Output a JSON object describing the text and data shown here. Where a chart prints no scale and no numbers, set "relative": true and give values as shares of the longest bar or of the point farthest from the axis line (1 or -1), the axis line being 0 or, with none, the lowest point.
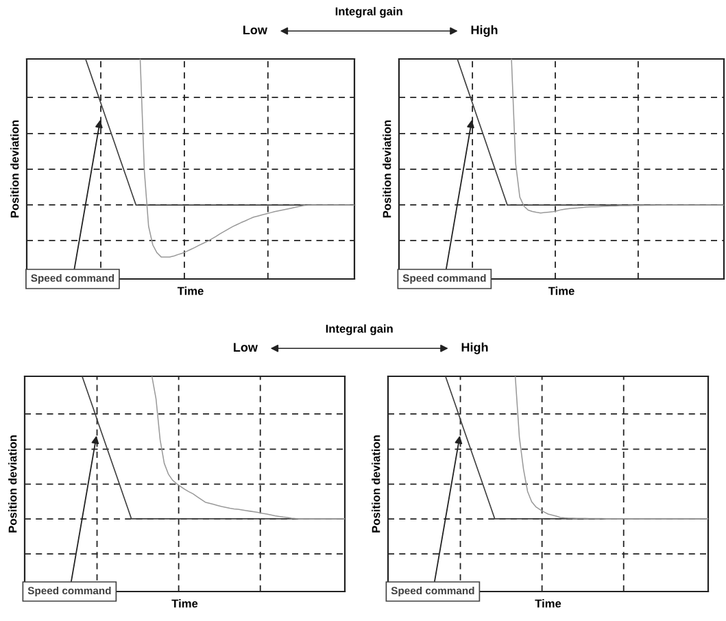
{
  "chart_data": [
    {
      "type": "line",
      "relative": true,
      "xlabel": "Time",
      "ylabel": "Position deviation",
      "annotations": [
        "Integral gain",
        "Low",
        "High"
      ],
      "grid": true,
      "legend": false,
      "marker": "none",
      "line_style": "solid",
      "categories": [
        null,
        null,
        null,
        null,
        null,
        null,
        null,
        null,
        null,
        null,
        null,
        null,
        null,
        null,
        null,
        null,
        null,
        null,
        null,
        null,
        null,
        null,
        null,
        null,
        null,
        null,
        null,
        null,
        null,
        null,
        null,
        null,
        null,
        null,
        null,
        null,
        null,
        null,
        null,
        null,
        null,
        null,
        null,
        null,
        null,
        null,
        null,
        null,
        null,
        null,
        null,
        null,
        null,
        null,
        null,
        null,
        null,
        null,
        null,
        null,
        null,
        null,
        null,
        null,
        null,
        null,
        null,
        null,
        null,
        null,
        null,
        null,
        null,
        null,
        null,
        null,
        null,
        null,
        null
      ],
      "series": [
        {
          "name": "Speed command",
          "color": "#404040",
          "values": [
            null,
            null,
            null,
            null,
            null,
            null,
            null,
            null,
            null,
            null,
            null,
            null,
            null,
            null,
            1.0,
            0.945,
            0.889,
            0.834,
            0.779,
            0.723,
            0.668,
            0.613,
            0.557,
            0.502,
            0.447,
            0.391,
            0.336,
            0.336,
            0.336,
            0.336,
            0.336,
            0.336,
            0.336,
            0.336,
            0.336,
            0.336,
            0.336,
            0.336,
            0.336,
            0.336,
            0.336,
            0.336,
            0.336,
            0.336,
            0.336,
            0.336,
            0.336,
            0.336,
            0.336,
            0.336,
            0.336,
            0.336,
            0.336,
            0.336,
            0.336,
            0.336,
            0.336,
            0.336,
            0.336,
            0.336,
            0.336,
            0.336,
            0.336,
            0.336,
            0.336,
            0.336,
            0.336,
            0.336,
            0.336,
            0.336,
            0.336,
            0.336,
            0.336,
            0.336,
            0.336,
            0.336,
            0.336,
            0.336,
            0.336
          ]
        },
        {
          "color": "#999999",
          "values": [
            null,
            null,
            null,
            null,
            null,
            null,
            null,
            null,
            null,
            null,
            null,
            null,
            null,
            null,
            null,
            null,
            null,
            null,
            null,
            null,
            null,
            null,
            null,
            null,
            null,
            null,
            null,
            1.0,
            0.489,
            0.24,
            0.155,
            0.119,
            0.1,
            0.1,
            0.1,
            0.104,
            0.111,
            0.117,
            0.125,
            0.134,
            0.143,
            0.153,
            0.162,
            0.171,
            0.182,
            0.193,
            0.205,
            0.216,
            0.227,
            0.238,
            0.247,
            0.256,
            0.264,
            0.273,
            0.281,
            0.286,
            0.291,
            0.296,
            0.301,
            0.306,
            0.31,
            0.314,
            0.318,
            0.322,
            0.326,
            0.33,
            0.334,
            0.336,
            0.336,
            0.336,
            0.336,
            0.336,
            0.336,
            0.336,
            0.336,
            0.336,
            0.336,
            0.336,
            0.336
          ]
        }
      ]
    },
    {
      "type": "line",
      "relative": true,
      "xlabel": "Time",
      "ylabel": "Position deviation",
      "grid": true,
      "legend": false,
      "marker": "none",
      "line_style": "solid",
      "categories": [
        null,
        null,
        null,
        null,
        null,
        null,
        null,
        null,
        null,
        null,
        null,
        null,
        null,
        null,
        null,
        null,
        null,
        null,
        null,
        null,
        null,
        null,
        null,
        null,
        null,
        null,
        null,
        null,
        null,
        null,
        null,
        null,
        null,
        null,
        null,
        null,
        null,
        null,
        null,
        null,
        null,
        null,
        null,
        null,
        null,
        null,
        null,
        null,
        null,
        null,
        null,
        null,
        null,
        null,
        null,
        null,
        null,
        null,
        null,
        null,
        null,
        null,
        null,
        null,
        null,
        null,
        null,
        null,
        null,
        null,
        null,
        null,
        null,
        null,
        null,
        null,
        null,
        null,
        null
      ],
      "series": [
        {
          "name": "Speed command",
          "color": "#404040",
          "values": [
            null,
            null,
            null,
            null,
            null,
            null,
            null,
            null,
            null,
            null,
            null,
            null,
            null,
            null,
            1.0,
            0.945,
            0.889,
            0.834,
            0.779,
            0.723,
            0.668,
            0.613,
            0.557,
            0.502,
            0.447,
            0.391,
            0.336,
            0.336,
            0.336,
            0.336,
            0.336,
            0.336,
            0.336,
            0.336,
            0.336,
            0.336,
            0.336,
            0.336,
            0.336,
            0.336,
            0.336,
            0.336,
            0.336,
            0.336,
            0.336,
            0.336,
            0.336,
            0.336,
            0.336,
            0.336,
            0.336,
            0.336,
            0.336,
            0.336,
            0.336,
            0.336,
            0.336,
            0.336,
            0.336,
            0.336,
            0.336,
            0.336,
            0.336,
            0.336,
            0.336,
            0.336,
            0.336,
            0.336,
            0.336,
            0.336,
            0.336,
            0.336,
            0.336,
            0.336,
            0.336,
            0.336,
            0.336,
            0.336,
            0.336
          ]
        },
        {
          "color": "#999999",
          "values": [
            null,
            null,
            null,
            null,
            null,
            null,
            null,
            null,
            null,
            null,
            null,
            null,
            null,
            null,
            null,
            null,
            null,
            null,
            null,
            null,
            null,
            null,
            null,
            null,
            null,
            null,
            null,
            1.0,
            0.525,
            0.372,
            0.331,
            0.313,
            0.307,
            0.303,
            0.3,
            0.302,
            0.304,
            0.306,
            0.31,
            0.315,
            0.318,
            0.32,
            0.322,
            0.323,
            0.325,
            0.327,
            0.328,
            0.328,
            0.329,
            0.33,
            0.331,
            0.332,
            0.332,
            0.333,
            0.333,
            0.333,
            0.334,
            0.334,
            0.334,
            0.335,
            0.335,
            0.335,
            0.336,
            0.336,
            0.336,
            0.336,
            0.336,
            0.336,
            0.336,
            0.336,
            0.336,
            0.336,
            0.336,
            0.336,
            0.336,
            0.336,
            0.336,
            0.336,
            0.336
          ]
        }
      ]
    },
    {
      "type": "line",
      "relative": true,
      "xlabel": "Time",
      "ylabel": "Position deviation",
      "annotations": [
        "Integral gain",
        "Low",
        "High"
      ],
      "grid": true,
      "legend": false,
      "marker": "none",
      "line_style": "solid",
      "categories": [
        null,
        null,
        null,
        null,
        null,
        null,
        null,
        null,
        null,
        null,
        null,
        null,
        null,
        null,
        null,
        null,
        null,
        null,
        null,
        null,
        null,
        null,
        null,
        null,
        null,
        null,
        null,
        null,
        null,
        null,
        null,
        null,
        null,
        null,
        null,
        null,
        null,
        null,
        null,
        null,
        null,
        null,
        null,
        null,
        null,
        null,
        null,
        null,
        null,
        null,
        null,
        null,
        null,
        null,
        null,
        null,
        null,
        null,
        null,
        null,
        null,
        null,
        null,
        null,
        null,
        null,
        null,
        null,
        null,
        null,
        null,
        null,
        null,
        null,
        null,
        null,
        null,
        null,
        null
      ],
      "series": [
        {
          "name": "Speed command",
          "color": "#404040",
          "values": [
            null,
            null,
            null,
            null,
            null,
            null,
            null,
            null,
            null,
            null,
            null,
            null,
            null,
            null,
            1.0,
            0.945,
            0.89,
            0.835,
            0.779,
            0.724,
            0.669,
            0.614,
            0.559,
            0.504,
            0.448,
            0.393,
            0.338,
            0.338,
            0.338,
            0.338,
            0.338,
            0.338,
            0.338,
            0.338,
            0.338,
            0.338,
            0.338,
            0.338,
            0.338,
            0.338,
            0.338,
            0.338,
            0.338,
            0.338,
            0.338,
            0.338,
            0.338,
            0.338,
            0.338,
            0.338,
            0.338,
            0.338,
            0.338,
            0.338,
            0.338,
            0.338,
            0.338,
            0.338,
            0.338,
            0.338,
            0.338,
            0.338,
            0.338,
            0.338,
            0.338,
            0.338,
            0.338,
            0.338,
            0.338,
            0.338,
            0.338,
            0.338,
            0.338,
            0.338,
            0.338,
            0.338,
            0.338,
            0.338,
            0.338
          ]
        },
        {
          "color": "#999999",
          "values": [
            null,
            null,
            null,
            null,
            null,
            null,
            null,
            null,
            null,
            null,
            null,
            null,
            null,
            null,
            null,
            null,
            null,
            null,
            null,
            null,
            null,
            null,
            null,
            null,
            null,
            null,
            null,
            null,
            null,
            null,
            null,
            1.0,
            0.895,
            0.705,
            0.596,
            0.546,
            0.518,
            0.501,
            0.488,
            0.475,
            0.464,
            0.454,
            0.441,
            0.428,
            0.415,
            0.41,
            0.405,
            0.4,
            0.395,
            0.391,
            0.387,
            0.384,
            0.382,
            0.379,
            0.376,
            0.373,
            0.37,
            0.367,
            0.363,
            0.36,
            0.356,
            0.352,
            0.349,
            0.346,
            0.344,
            0.341,
            0.339,
            0.338,
            0.338,
            0.338,
            0.338,
            0.338,
            0.338,
            0.338,
            0.338,
            0.338,
            0.338,
            0.338,
            0.338
          ]
        }
      ]
    },
    {
      "type": "line",
      "relative": true,
      "xlabel": "Time",
      "ylabel": "Position deviation",
      "grid": true,
      "legend": false,
      "marker": "none",
      "line_style": "solid",
      "categories": [
        null,
        null,
        null,
        null,
        null,
        null,
        null,
        null,
        null,
        null,
        null,
        null,
        null,
        null,
        null,
        null,
        null,
        null,
        null,
        null,
        null,
        null,
        null,
        null,
        null,
        null,
        null,
        null,
        null,
        null,
        null,
        null,
        null,
        null,
        null,
        null,
        null,
        null,
        null,
        null,
        null,
        null,
        null,
        null,
        null,
        null,
        null,
        null,
        null,
        null,
        null,
        null,
        null,
        null,
        null,
        null,
        null,
        null,
        null,
        null,
        null,
        null,
        null,
        null,
        null,
        null,
        null,
        null,
        null,
        null,
        null,
        null,
        null,
        null,
        null,
        null,
        null,
        null,
        null
      ],
      "series": [
        {
          "name": "Speed command",
          "color": "#404040",
          "values": [
            null,
            null,
            null,
            null,
            null,
            null,
            null,
            null,
            null,
            null,
            null,
            null,
            null,
            null,
            1.0,
            0.945,
            0.89,
            0.835,
            0.779,
            0.724,
            0.669,
            0.614,
            0.559,
            0.504,
            0.448,
            0.393,
            0.338,
            0.338,
            0.338,
            0.338,
            0.338,
            0.338,
            0.338,
            0.338,
            0.338,
            0.338,
            0.338,
            0.338,
            0.338,
            0.338,
            0.338,
            0.338,
            0.338,
            0.338,
            0.338,
            0.338,
            0.338,
            0.338,
            0.338,
            0.338,
            0.338,
            0.338,
            0.338,
            0.338,
            0.338,
            0.338,
            0.338,
            0.338,
            0.338,
            0.338,
            0.338,
            0.338,
            0.338,
            0.338,
            0.338,
            0.338,
            0.338,
            0.338,
            0.338,
            0.338,
            0.338,
            0.338,
            0.338,
            0.338,
            0.338,
            0.338,
            0.338,
            0.338,
            0.338
          ]
        },
        {
          "color": "#999999",
          "values": [
            null,
            null,
            null,
            null,
            null,
            null,
            null,
            null,
            null,
            null,
            null,
            null,
            null,
            null,
            null,
            null,
            null,
            null,
            null,
            null,
            null,
            null,
            null,
            null,
            null,
            null,
            null,
            null,
            null,
            null,
            null,
            1.0,
            0.717,
            0.569,
            0.465,
            0.417,
            0.394,
            0.381,
            0.37,
            0.36,
            0.355,
            0.35,
            0.344,
            0.342,
            0.341,
            0.341,
            0.34,
            0.34,
            0.34,
            0.339,
            0.339,
            0.339,
            0.339,
            0.338,
            0.338,
            0.338,
            0.338,
            0.338,
            0.338,
            0.338,
            0.338,
            0.338,
            0.338,
            0.338,
            0.338,
            0.338,
            0.338,
            0.338,
            0.338,
            0.338,
            0.338,
            0.338,
            0.338,
            0.338,
            0.338,
            0.338,
            0.338,
            0.338,
            0.338
          ]
        }
      ]
    }
  ]
}
